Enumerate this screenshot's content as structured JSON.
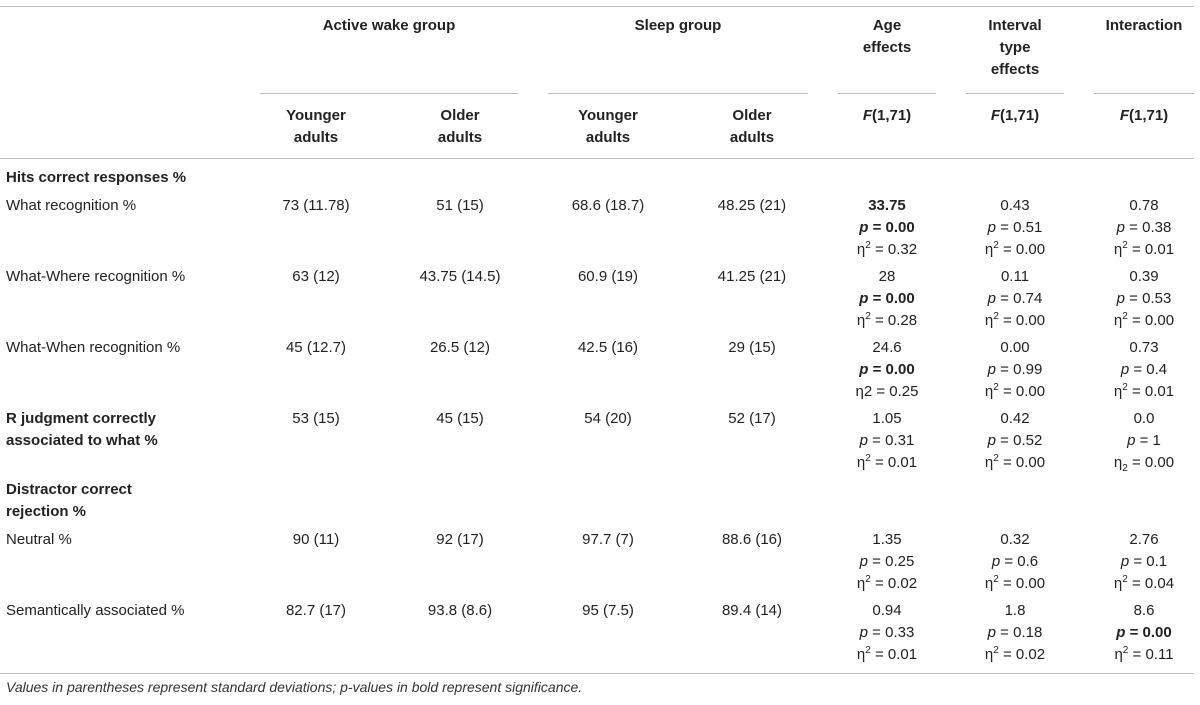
{
  "header": {
    "group_active": "Active wake group",
    "group_sleep": "Sleep group",
    "age_effects": [
      "Age",
      "effects"
    ],
    "interval_effects": [
      "Interval",
      "type",
      "effects"
    ],
    "interaction": "Interaction",
    "younger": [
      "Younger",
      "adults"
    ],
    "older": [
      "Older",
      "adults"
    ],
    "f_letter": "F",
    "f_rest": "(1,71)"
  },
  "stat_labels": {
    "p": "p",
    "eta": "η"
  },
  "sections": {
    "hits": "Hits correct responses %",
    "distractor": [
      "Distractor correct",
      "rejection %"
    ]
  },
  "rows": [
    {
      "label": [
        "What recognition %"
      ],
      "label_bold": false,
      "aw_young": "73 (11.78)",
      "aw_old": "51 (15)",
      "sl_young": "68.6 (18.7)",
      "sl_old": "48.25 (21)",
      "age": {
        "F": "33.75",
        "p": " = 0.00",
        "eta": " = 0.32",
        "bold": true,
        "eta_form": "sup"
      },
      "interval": {
        "F": "0.43",
        "p": " = 0.51",
        "eta": " = 0.00",
        "bold": false,
        "eta_form": "sup"
      },
      "inter": {
        "F": "0.78",
        "p": " = 0.38",
        "eta": " = 0.01",
        "bold": false,
        "eta_form": "sup"
      }
    },
    {
      "label": [
        "What-Where recognition %"
      ],
      "label_bold": false,
      "aw_young": "63 (12)",
      "aw_old": "43.75 (14.5)",
      "sl_young": "60.9 (19)",
      "sl_old": "41.25 (21)",
      "age": {
        "F": "28",
        "p": " = 0.00",
        "eta": " = 0.28",
        "bold": false,
        "pbold": true,
        "eta_form": "sup"
      },
      "interval": {
        "F": "0.11",
        "p": " = 0.74",
        "eta": " = 0.00",
        "bold": false,
        "eta_form": "sup"
      },
      "inter": {
        "F": "0.39",
        "p": " = 0.53",
        "eta": " = 0.00",
        "bold": false,
        "eta_form": "sup"
      }
    },
    {
      "label": [
        "What-When recognition %"
      ],
      "label_bold": false,
      "aw_young": "45 (12.7)",
      "aw_old": "26.5 (12)",
      "sl_young": "42.5 (16)",
      "sl_old": "29 (15)",
      "age": {
        "F": "24.6",
        "p": " = 0.00",
        "eta": "2 = 0.25",
        "bold": false,
        "pbold": true,
        "eta_form": "plain"
      },
      "interval": {
        "F": "0.00",
        "p": " = 0.99",
        "eta": " = 0.00",
        "bold": false,
        "eta_form": "sup"
      },
      "inter": {
        "F": "0.73",
        "p": " = 0.4",
        "eta": " = 0.01",
        "bold": false,
        "eta_form": "sup"
      }
    },
    {
      "label": [
        "R judgment correctly",
        "associated to what %"
      ],
      "label_bold": true,
      "aw_young": "53 (15)",
      "aw_old": "45 (15)",
      "sl_young": "54 (20)",
      "sl_old": "52 (17)",
      "age": {
        "F": "1.05",
        "p": " = 0.31",
        "eta": " = 0.01",
        "bold": false,
        "eta_form": "sup"
      },
      "interval": {
        "F": "0.42",
        "p": " = 0.52",
        "eta": " = 0.00",
        "bold": false,
        "eta_form": "sup"
      },
      "inter": {
        "F": "0.0",
        "p": " = 1",
        "eta": " = 0.00",
        "bold": false,
        "eta_form": "sub"
      }
    },
    {
      "label": [
        "Neutral %"
      ],
      "label_bold": false,
      "aw_young": "90 (11)",
      "aw_old": "92 (17)",
      "sl_young": "97.7 (7)",
      "sl_old": "88.6 (16)",
      "age": {
        "F": "1.35",
        "p": " = 0.25",
        "eta": " = 0.02",
        "bold": false,
        "eta_form": "sup"
      },
      "interval": {
        "F": "0.32",
        "p": " = 0.6",
        "eta": " = 0.00",
        "bold": false,
        "eta_form": "sup"
      },
      "inter": {
        "F": "2.76",
        "p": " = 0.1",
        "eta": " = 0.04",
        "bold": false,
        "eta_form": "sup"
      }
    },
    {
      "label": [
        "Semantically associated %"
      ],
      "label_bold": false,
      "aw_young": "82.7 (17)",
      "aw_old": "93.8 (8.6)",
      "sl_young": "95 (7.5)",
      "sl_old": "89.4 (14)",
      "age": {
        "F": "0.94",
        "p": " = 0.33",
        "eta": " = 0.01",
        "bold": false,
        "eta_form": "sup"
      },
      "interval": {
        "F": "1.8",
        "p": " = 0.18",
        "eta": " = 0.02",
        "bold": false,
        "eta_form": "sup"
      },
      "inter": {
        "F": "8.6",
        "p": " = 0.00",
        "eta": " = 0.11",
        "bold": false,
        "pbold": true,
        "eta_form": "sup"
      }
    }
  ],
  "footnote": "Values in parentheses represent standard deviations; p-values in bold represent significance."
}
